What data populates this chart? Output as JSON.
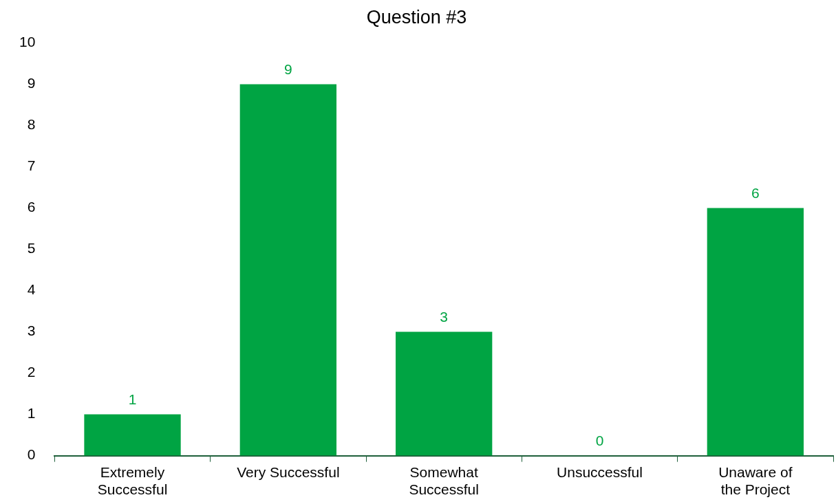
{
  "chart_data": {
    "type": "bar",
    "title": "Question #3",
    "categories": [
      "Extremely Successful",
      "Very Successful",
      "Somewhat Successful",
      "Unsuccessful",
      "Unaware of the Project"
    ],
    "values": [
      1,
      9,
      3,
      0,
      6
    ],
    "color": "#00a443",
    "ylim": [
      0,
      10
    ],
    "yticks": [
      0,
      1,
      2,
      3,
      4,
      5,
      6,
      7,
      8,
      9,
      10
    ],
    "grid": false,
    "legend": false,
    "data_labels": true
  }
}
